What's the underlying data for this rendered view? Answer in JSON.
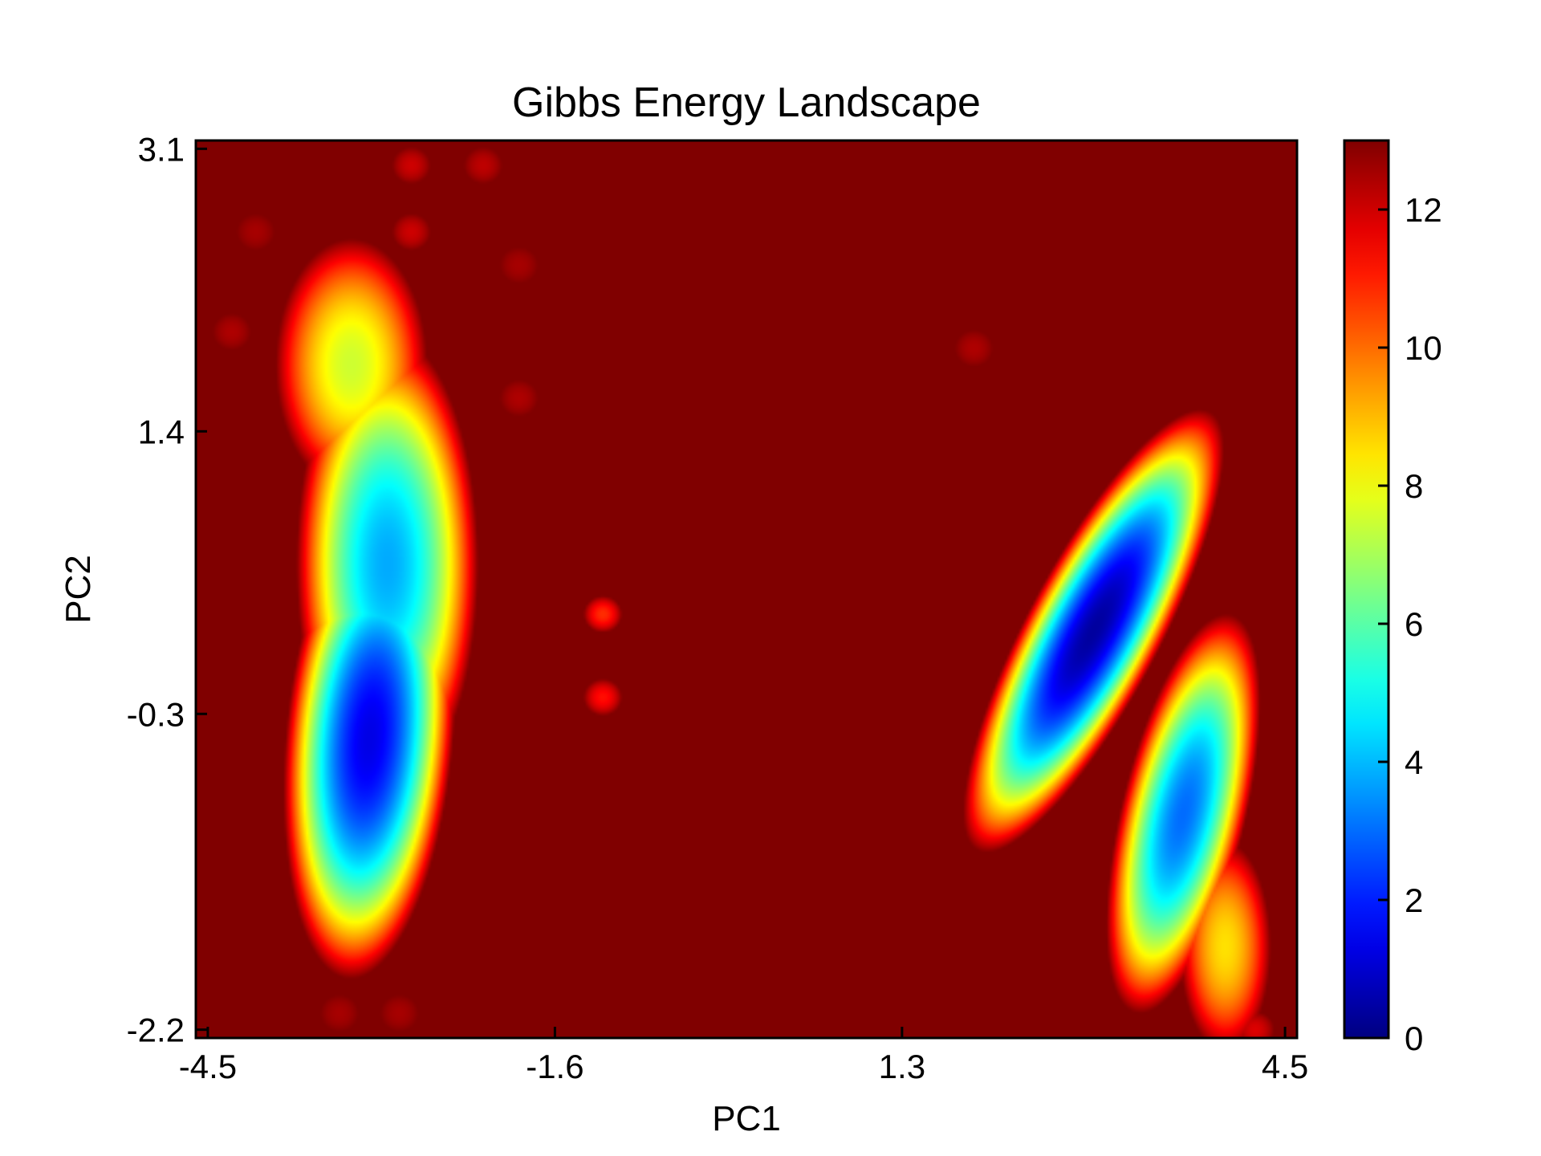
{
  "chart_data": {
    "type": "heatmap",
    "title": "Gibbs Energy Landscape",
    "xlabel": "PC1",
    "ylabel": "PC2",
    "xlim": [
      -4.6,
      4.6
    ],
    "ylim": [
      -2.25,
      3.15
    ],
    "x_ticks": [
      -4.5,
      -1.6,
      1.3,
      4.5
    ],
    "x_tick_labels": [
      "-4.5",
      "-1.6",
      "1.3",
      "4.5"
    ],
    "y_ticks": [
      -2.2,
      -0.3,
      1.4,
      3.1
    ],
    "y_tick_labels": [
      "-2.2",
      "-0.3",
      "1.4",
      "3.1"
    ],
    "colorbar": {
      "colormap": "jet",
      "range": [
        0,
        13
      ],
      "ticks": [
        0,
        2,
        4,
        6,
        8,
        10,
        12
      ],
      "tick_labels": [
        "0",
        "2",
        "4",
        "6",
        "8",
        "10",
        "12"
      ]
    },
    "energy_cap": 13,
    "wells": [
      {
        "x": -3.15,
        "y": -0.45,
        "sx": 0.55,
        "sy": 1.15,
        "rot_deg": 8,
        "depth": 1.3
      },
      {
        "x": -3.0,
        "y": 0.6,
        "sx": 0.6,
        "sy": 1.1,
        "rot_deg": 0,
        "depth": 3.8
      },
      {
        "x": -3.3,
        "y": 1.8,
        "sx": 0.5,
        "sy": 0.6,
        "rot_deg": 0,
        "depth": 7.5
      },
      {
        "x": 2.9,
        "y": 0.2,
        "sx": 0.4,
        "sy": 1.3,
        "rot_deg": 38,
        "depth": 0.4
      },
      {
        "x": 3.65,
        "y": -0.9,
        "sx": 0.4,
        "sy": 1.0,
        "rot_deg": 20,
        "depth": 3.0
      },
      {
        "x": 4.0,
        "y": -1.7,
        "sx": 0.3,
        "sy": 0.5,
        "rot_deg": 0,
        "depth": 8.5
      }
    ],
    "isolated_points": [
      {
        "x": -2.8,
        "y": 3.0,
        "value": 12.0
      },
      {
        "x": -2.2,
        "y": 3.0,
        "value": 12.2
      },
      {
        "x": -2.8,
        "y": 2.6,
        "value": 12.0
      },
      {
        "x": -4.1,
        "y": 2.6,
        "value": 12.5
      },
      {
        "x": -1.9,
        "y": 2.4,
        "value": 12.5
      },
      {
        "x": -4.3,
        "y": 2.0,
        "value": 12.4
      },
      {
        "x": -1.9,
        "y": 1.6,
        "value": 12.4
      },
      {
        "x": -1.2,
        "y": 0.3,
        "value": 10.8
      },
      {
        "x": -1.2,
        "y": -0.2,
        "value": 11.2
      },
      {
        "x": -3.4,
        "y": -2.1,
        "value": 12.5
      },
      {
        "x": -2.9,
        "y": -2.1,
        "value": 12.5
      },
      {
        "x": 1.9,
        "y": 1.9,
        "value": 12.4
      },
      {
        "x": 4.25,
        "y": -2.2,
        "value": 11.8
      }
    ]
  }
}
